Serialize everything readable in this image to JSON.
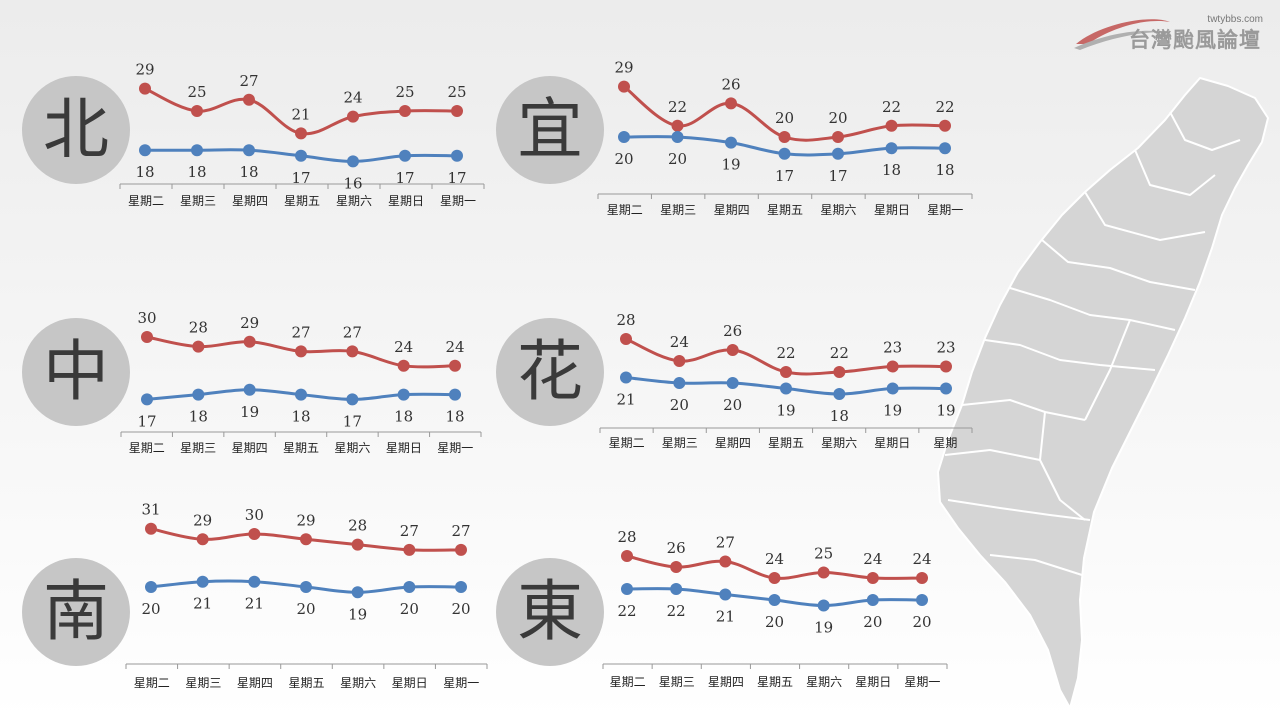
{
  "logo": {
    "url": "twtybbs.com",
    "name": "台灣颱風論壇"
  },
  "map": {
    "fill_color": "#d5d5d5",
    "border_color": "#ffffff"
  },
  "colors": {
    "high": "#c0504d",
    "low": "#4f81bd",
    "circle": "#c6c6c6",
    "axis": "#999999"
  },
  "chart_data": [
    {
      "type": "line",
      "region": "北",
      "categories": [
        "星期二",
        "星期三",
        "星期四",
        "星期五",
        "星期六",
        "星期日",
        "星期一"
      ],
      "series": [
        {
          "values": [
            29,
            25,
            27,
            21,
            24,
            25,
            25
          ]
        },
        {
          "values": [
            18,
            18,
            18,
            17,
            16,
            17,
            17
          ]
        }
      ]
    },
    {
      "type": "line",
      "region": "宜",
      "categories": [
        "星期二",
        "星期三",
        "星期四",
        "星期五",
        "星期六",
        "星期日",
        "星期一"
      ],
      "series": [
        {
          "values": [
            29,
            22,
            26,
            20,
            20,
            22,
            22
          ]
        },
        {
          "values": [
            20,
            20,
            19,
            17,
            17,
            18,
            18
          ]
        }
      ]
    },
    {
      "type": "line",
      "region": "中",
      "categories": [
        "星期二",
        "星期三",
        "星期四",
        "星期五",
        "星期六",
        "星期日",
        "星期一"
      ],
      "series": [
        {
          "values": [
            30,
            28,
            29,
            27,
            27,
            24,
            24
          ]
        },
        {
          "values": [
            17,
            18,
            19,
            18,
            17,
            18,
            18
          ]
        }
      ]
    },
    {
      "type": "line",
      "region": "花",
      "categories": [
        "星期二",
        "星期三",
        "星期四",
        "星期五",
        "星期六",
        "星期日",
        "星期"
      ],
      "series": [
        {
          "values": [
            28,
            24,
            26,
            22,
            22,
            23,
            23
          ]
        },
        {
          "values": [
            21,
            20,
            20,
            19,
            18,
            19,
            19
          ]
        }
      ]
    },
    {
      "type": "line",
      "region": "南",
      "categories": [
        "星期二",
        "星期三",
        "星期四",
        "星期五",
        "星期六",
        "星期日",
        "星期一"
      ],
      "series": [
        {
          "values": [
            31,
            29,
            30,
            29,
            28,
            27,
            27
          ]
        },
        {
          "values": [
            20,
            21,
            21,
            20,
            19,
            20,
            20
          ]
        }
      ]
    },
    {
      "type": "line",
      "region": "東",
      "categories": [
        "星期二",
        "星期三",
        "星期四",
        "星期五",
        "星期六",
        "星期日",
        "星期一"
      ],
      "series": [
        {
          "values": [
            28,
            26,
            27,
            24,
            25,
            24,
            24
          ]
        },
        {
          "values": [
            22,
            22,
            21,
            20,
            19,
            20,
            20
          ]
        }
      ]
    }
  ]
}
